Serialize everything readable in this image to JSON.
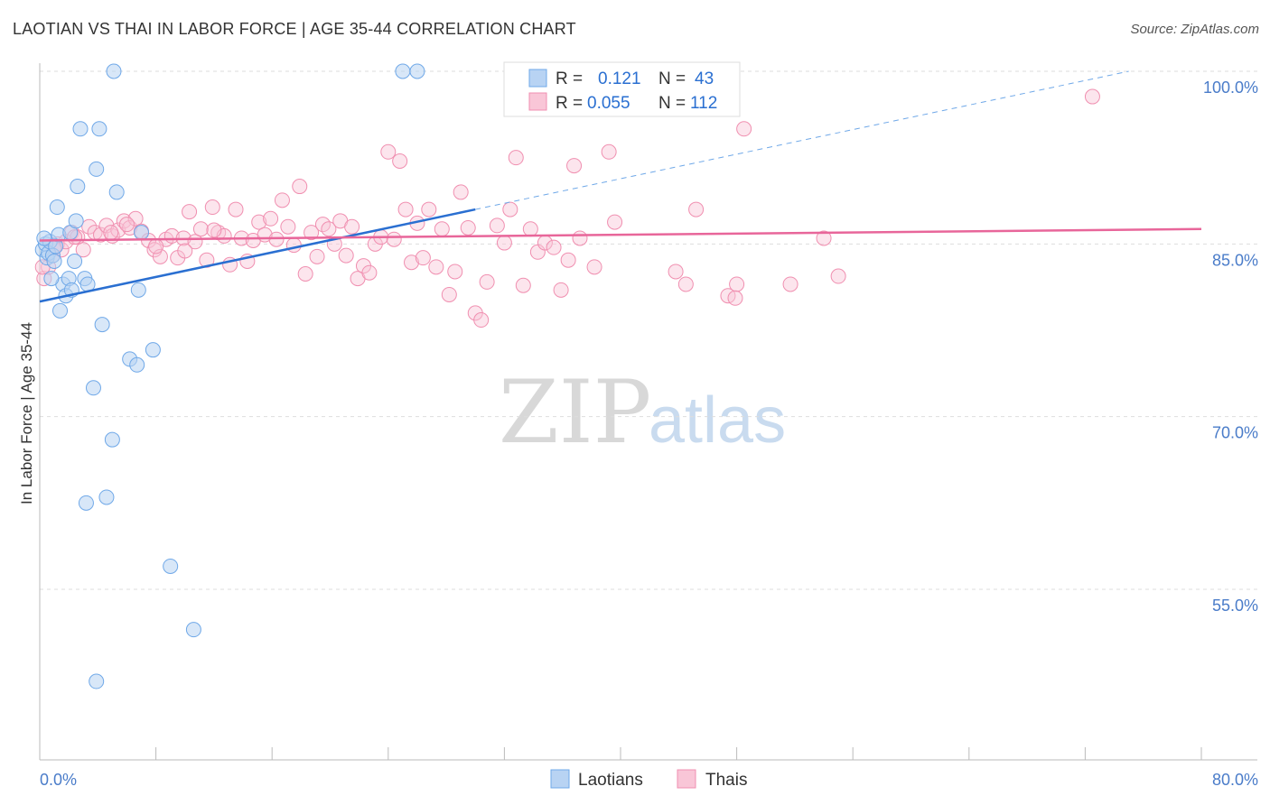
{
  "title": "LAOTIAN VS THAI IN LABOR FORCE | AGE 35-44 CORRELATION CHART",
  "source": "Source: ZipAtlas.com",
  "watermark": {
    "zip": "ZIP",
    "atlas": "atlas"
  },
  "colors": {
    "laotians": "#6fa8e8",
    "laotians_line": "#2a6fd1",
    "thais": "#f08fb0",
    "thais_line": "#e8669a",
    "tick": "#4a7cc9"
  },
  "legend_box": {
    "rows": [
      {
        "r_label": "R =",
        "r_value": "0.121",
        "n_label": "N =",
        "n_value": "43"
      },
      {
        "r_label": "R =",
        "r_value": "0.055",
        "n_label": "N =",
        "n_value": "112"
      }
    ]
  },
  "chart_data": {
    "type": "scatter",
    "xlabel": "",
    "ylabel": "In Labor Force | Age 35-44",
    "xlim": [
      0,
      80
    ],
    "ylim": [
      40,
      102
    ],
    "x_tick_labels": [
      "0.0%",
      "80.0%"
    ],
    "y_ticks": [
      55,
      70,
      85,
      100
    ],
    "y_tick_labels": [
      "55.0%",
      "70.0%",
      "85.0%",
      "100.0%"
    ],
    "grid": "horizontal dashed",
    "legend_position": "bottom-center",
    "series": [
      {
        "name": "Laotians",
        "trend": {
          "x": [
            0,
            30
          ],
          "y": [
            80.0,
            88.0
          ],
          "dashed_to": [
            75,
            100.0
          ]
        },
        "points": [
          [
            0.2,
            84.5
          ],
          [
            0.4,
            85.0
          ],
          [
            0.5,
            83.8
          ],
          [
            0.6,
            84.2
          ],
          [
            0.7,
            85.2
          ],
          [
            0.9,
            84.0
          ],
          [
            1.0,
            83.5
          ],
          [
            1.2,
            88.2
          ],
          [
            1.3,
            85.8
          ],
          [
            1.4,
            79.2
          ],
          [
            1.6,
            81.5
          ],
          [
            1.8,
            80.5
          ],
          [
            2.0,
            82.0
          ],
          [
            2.1,
            86.0
          ],
          [
            2.2,
            81.0
          ],
          [
            2.4,
            83.5
          ],
          [
            2.5,
            87.0
          ],
          [
            2.6,
            90.0
          ],
          [
            2.8,
            95.0
          ],
          [
            3.1,
            82.0
          ],
          [
            3.3,
            81.5
          ],
          [
            3.7,
            72.5
          ],
          [
            3.9,
            91.5
          ],
          [
            4.1,
            95.0
          ],
          [
            4.3,
            78.0
          ],
          [
            4.6,
            63.0
          ],
          [
            5.0,
            68.0
          ],
          [
            5.3,
            89.5
          ],
          [
            5.1,
            100.0
          ],
          [
            6.2,
            75.0
          ],
          [
            6.7,
            74.5
          ],
          [
            6.8,
            81.0
          ],
          [
            7.0,
            86.0
          ],
          [
            7.8,
            75.8
          ],
          [
            9.0,
            57.0
          ],
          [
            10.6,
            51.5
          ],
          [
            3.2,
            62.5
          ],
          [
            3.9,
            47.0
          ],
          [
            25.0,
            100.0
          ],
          [
            26.0,
            100.0
          ],
          [
            0.3,
            85.5
          ],
          [
            1.1,
            84.8
          ],
          [
            0.8,
            82.0
          ]
        ]
      },
      {
        "name": "Thais",
        "trend": {
          "x": [
            0,
            80
          ],
          "y": [
            85.3,
            86.3
          ]
        },
        "points": [
          [
            0.3,
            82.0
          ],
          [
            0.6,
            83.0
          ],
          [
            0.9,
            84.0
          ],
          [
            1.2,
            85.0
          ],
          [
            1.5,
            84.5
          ],
          [
            1.8,
            85.2
          ],
          [
            2.2,
            86.0
          ],
          [
            2.6,
            85.6
          ],
          [
            3.0,
            84.5
          ],
          [
            3.4,
            86.5
          ],
          [
            3.8,
            86.0
          ],
          [
            4.2,
            85.8
          ],
          [
            4.6,
            86.6
          ],
          [
            5.0,
            85.7
          ],
          [
            5.4,
            86.2
          ],
          [
            5.8,
            87.0
          ],
          [
            6.2,
            86.4
          ],
          [
            6.6,
            87.2
          ],
          [
            7.0,
            86.1
          ],
          [
            7.5,
            85.3
          ],
          [
            7.9,
            84.5
          ],
          [
            8.3,
            83.9
          ],
          [
            8.7,
            85.4
          ],
          [
            9.1,
            85.7
          ],
          [
            9.5,
            83.8
          ],
          [
            9.9,
            85.5
          ],
          [
            10.3,
            87.8
          ],
          [
            10.7,
            85.2
          ],
          [
            11.1,
            86.3
          ],
          [
            11.5,
            83.6
          ],
          [
            11.9,
            88.2
          ],
          [
            12.3,
            86.0
          ],
          [
            12.7,
            85.7
          ],
          [
            13.1,
            83.2
          ],
          [
            13.5,
            88.0
          ],
          [
            13.9,
            85.5
          ],
          [
            14.3,
            83.5
          ],
          [
            14.7,
            85.3
          ],
          [
            15.1,
            86.9
          ],
          [
            15.5,
            85.8
          ],
          [
            15.9,
            87.2
          ],
          [
            16.3,
            85.4
          ],
          [
            16.7,
            88.8
          ],
          [
            17.1,
            86.5
          ],
          [
            17.5,
            84.9
          ],
          [
            17.9,
            90.0
          ],
          [
            18.3,
            82.4
          ],
          [
            18.7,
            86.0
          ],
          [
            19.1,
            83.9
          ],
          [
            19.5,
            86.7
          ],
          [
            19.9,
            86.3
          ],
          [
            20.3,
            85.0
          ],
          [
            20.7,
            87.0
          ],
          [
            21.1,
            84.0
          ],
          [
            21.5,
            86.5
          ],
          [
            21.9,
            82.0
          ],
          [
            22.3,
            83.1
          ],
          [
            22.7,
            82.5
          ],
          [
            23.1,
            85.0
          ],
          [
            23.5,
            85.6
          ],
          [
            24.0,
            93.0
          ],
          [
            24.4,
            85.4
          ],
          [
            24.8,
            92.2
          ],
          [
            25.2,
            88.0
          ],
          [
            25.6,
            83.4
          ],
          [
            26.0,
            86.8
          ],
          [
            26.4,
            83.8
          ],
          [
            26.8,
            88.0
          ],
          [
            27.3,
            83.0
          ],
          [
            27.7,
            86.3
          ],
          [
            28.2,
            80.6
          ],
          [
            28.6,
            82.6
          ],
          [
            29.0,
            89.5
          ],
          [
            29.5,
            86.4
          ],
          [
            30.0,
            79.0
          ],
          [
            30.4,
            78.4
          ],
          [
            30.8,
            81.7
          ],
          [
            31.5,
            86.6
          ],
          [
            32.0,
            85.1
          ],
          [
            32.4,
            88.0
          ],
          [
            32.8,
            92.5
          ],
          [
            33.3,
            81.4
          ],
          [
            33.8,
            86.3
          ],
          [
            34.3,
            84.3
          ],
          [
            34.8,
            85.1
          ],
          [
            35.4,
            84.7
          ],
          [
            35.9,
            81.0
          ],
          [
            36.4,
            83.6
          ],
          [
            36.8,
            91.8
          ],
          [
            37.2,
            85.5
          ],
          [
            38.2,
            83.0
          ],
          [
            39.2,
            93.0
          ],
          [
            39.6,
            86.9
          ],
          [
            43.8,
            82.6
          ],
          [
            44.5,
            81.5
          ],
          [
            45.2,
            88.0
          ],
          [
            47.4,
            80.5
          ],
          [
            48.0,
            81.5
          ],
          [
            47.9,
            80.3
          ],
          [
            48.5,
            95.0
          ],
          [
            51.7,
            81.5
          ],
          [
            54.0,
            85.5
          ],
          [
            55.0,
            82.2
          ],
          [
            72.5,
            97.8
          ],
          [
            2.4,
            85.6
          ],
          [
            4.9,
            86.0
          ],
          [
            6.0,
            86.7
          ],
          [
            0.2,
            83.0
          ],
          [
            1.0,
            84.7
          ],
          [
            8.0,
            84.8
          ],
          [
            10.0,
            84.4
          ],
          [
            12.0,
            86.2
          ]
        ]
      }
    ]
  }
}
